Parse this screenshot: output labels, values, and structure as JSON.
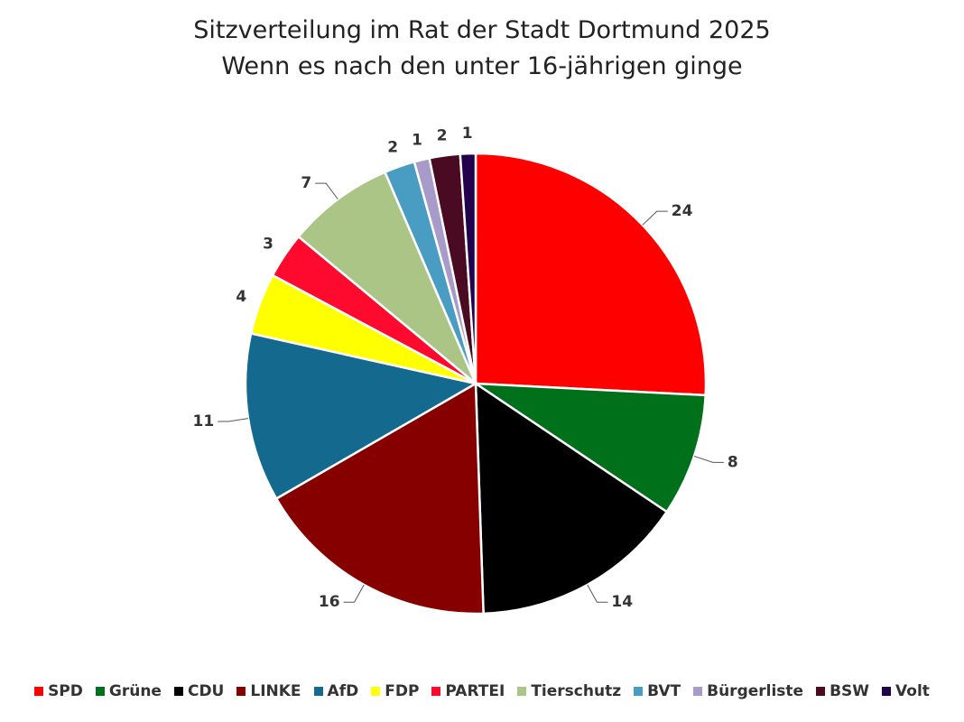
{
  "chart_data": {
    "type": "pie",
    "title": "Sitzverteilung im Rat der Stadt Dortmund 2025",
    "subtitle": "Wenn es nach den unter 16-jährigen ginge",
    "legend_position": "bottom",
    "slices": [
      {
        "label": "SPD",
        "value": 24,
        "color": "#FF0000"
      },
      {
        "label": "Grüne",
        "value": 8,
        "color": "#00701A"
      },
      {
        "label": "CDU",
        "value": 14,
        "color": "#000000"
      },
      {
        "label": "LINKE",
        "value": 16,
        "color": "#870000"
      },
      {
        "label": "AfD",
        "value": 11,
        "color": "#136A8E"
      },
      {
        "label": "FDP",
        "value": 4,
        "color": "#FFFF00"
      },
      {
        "label": "PARTEI",
        "value": 3,
        "color": "#FF0A2F"
      },
      {
        "label": "Tierschutz",
        "value": 7,
        "color": "#ABC587"
      },
      {
        "label": "BVT",
        "value": 2,
        "color": "#4A9DC2"
      },
      {
        "label": "Bürgerliste",
        "value": 1,
        "color": "#A99BC9"
      },
      {
        "label": "BSW",
        "value": 2,
        "color": "#4A0A22"
      },
      {
        "label": "Volt",
        "value": 1,
        "color": "#23004D"
      }
    ]
  }
}
